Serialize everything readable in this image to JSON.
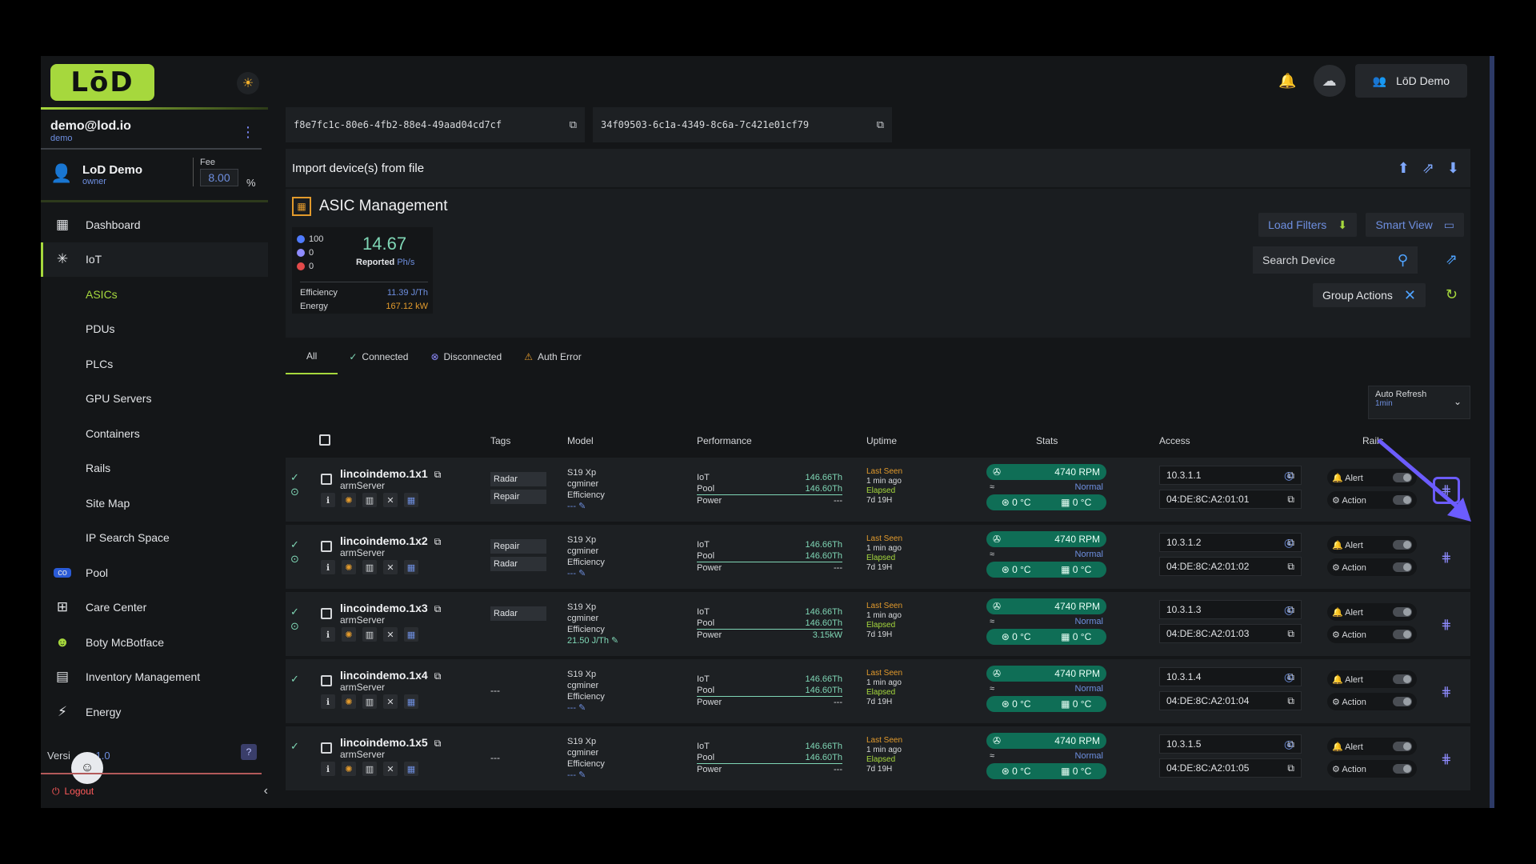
{
  "header": {
    "logo": "LōD",
    "user_button": "LōD Demo"
  },
  "sidebar": {
    "email": "demo@lod.io",
    "account_sub": "demo",
    "owner_name": "LoD Demo",
    "owner_role": "owner",
    "fee_label": "Fee",
    "fee_value": "8.00",
    "fee_unit": "%",
    "items": [
      {
        "label": "Dashboard",
        "icon": "dashboard-icon"
      },
      {
        "label": "IoT",
        "icon": "iot-icon"
      }
    ],
    "sub_items": [
      "ASICs",
      "PDUs",
      "PLCs",
      "GPU Servers",
      "Containers",
      "Rails",
      "Site Map",
      "IP Search Space"
    ],
    "items_bottom": [
      {
        "label": "Pool",
        "icon": "pool-icon"
      },
      {
        "label": "Care Center",
        "icon": "care-icon"
      },
      {
        "label": "Boty McBotface",
        "icon": "bot-icon"
      },
      {
        "label": "Inventory Management",
        "icon": "inventory-icon"
      },
      {
        "label": "Energy",
        "icon": "bolt-icon"
      }
    ],
    "version_label": "Versi",
    "version_value": ".1.0",
    "logout": "Logout"
  },
  "uuids": [
    "f8e7fc1c-80e6-4fb2-88e4-49aad04cd7cf",
    "34f09503-6c1a-4349-8c6a-7c421e01cf79"
  ],
  "import_label": "Import device(s) from file",
  "asic": {
    "title": "ASIC Management",
    "count_connected": "100",
    "count_disconnected": "0",
    "count_error": "0",
    "reported_value": "14.67",
    "reported_label": "Reported",
    "reported_unit": "Ph/s",
    "efficiency_label": "Efficiency",
    "efficiency_value": "11.39 J/Th",
    "energy_label": "Energy",
    "energy_value": "167.12 kW",
    "load_filters": "Load Filters",
    "smart_view": "Smart View",
    "search_placeholder": "Search Device",
    "group_actions": "Group Actions"
  },
  "tabs": [
    "All",
    "Connected",
    "Disconnected",
    "Auth Error"
  ],
  "auto_refresh": {
    "label": "Auto Refresh",
    "value": "1min"
  },
  "columns": [
    "Tags",
    "Model",
    "Performance",
    "Uptime",
    "Stats",
    "Access",
    "Rails"
  ],
  "rows": [
    {
      "name": "lincoindemo.1x1",
      "server": "armServer",
      "tags": [
        "Radar",
        "Repair"
      ],
      "model": "S19 Xp",
      "miner": "cgminer",
      "eff_label": "Efficiency",
      "eff": "---",
      "iot": "146.66Th",
      "pool": "146.60Th",
      "power": "---",
      "last_seen": "Last Seen",
      "ago": "1 min ago",
      "elapsed": "Elapsed",
      "uptime": "7d 19H",
      "rpm": "4740 RPM",
      "status": "Normal",
      "t1": "0 °C",
      "t2": "0 °C",
      "ip": "10.3.1.1",
      "mac": "04:DE:8C:A2:01:01",
      "alert": "Alert",
      "action": "Action"
    },
    {
      "name": "lincoindemo.1x2",
      "server": "armServer",
      "tags": [
        "Repair",
        "Radar"
      ],
      "model": "S19 Xp",
      "miner": "cgminer",
      "eff_label": "Efficiency",
      "eff": "---",
      "iot": "146.66Th",
      "pool": "146.60Th",
      "power": "---",
      "last_seen": "Last Seen",
      "ago": "1 min ago",
      "elapsed": "Elapsed",
      "uptime": "7d 19H",
      "rpm": "4740 RPM",
      "status": "Normal",
      "t1": "0 °C",
      "t2": "0 °C",
      "ip": "10.3.1.2",
      "mac": "04:DE:8C:A2:01:02",
      "alert": "Alert",
      "action": "Action"
    },
    {
      "name": "lincoindemo.1x3",
      "server": "armServer",
      "tags": [
        "Radar"
      ],
      "model": "S19 Xp",
      "miner": "cgminer",
      "eff_label": "Efficiency",
      "eff": "21.50 J/Th",
      "iot": "146.66Th",
      "pool": "146.60Th",
      "power": "3.15kW",
      "last_seen": "Last Seen",
      "ago": "1 min ago",
      "elapsed": "Elapsed",
      "uptime": "7d 19H",
      "rpm": "4740 RPM",
      "status": "Normal",
      "t1": "0 °C",
      "t2": "0 °C",
      "ip": "10.3.1.3",
      "mac": "04:DE:8C:A2:01:03",
      "alert": "Alert",
      "action": "Action"
    },
    {
      "name": "lincoindemo.1x4",
      "server": "armServer",
      "tags": [],
      "notag": "---",
      "model": "S19 Xp",
      "miner": "cgminer",
      "eff_label": "Efficiency",
      "eff": "---",
      "iot": "146.66Th",
      "pool": "146.60Th",
      "power": "---",
      "last_seen": "Last Seen",
      "ago": "1 min ago",
      "elapsed": "Elapsed",
      "uptime": "7d 19H",
      "rpm": "4740 RPM",
      "status": "Normal",
      "t1": "0 °C",
      "t2": "0 °C",
      "ip": "10.3.1.4",
      "mac": "04:DE:8C:A2:01:04",
      "alert": "Alert",
      "action": "Action"
    },
    {
      "name": "lincoindemo.1x5",
      "server": "armServer",
      "tags": [],
      "notag": "---",
      "model": "S19 Xp",
      "miner": "cgminer",
      "eff_label": "Efficiency",
      "eff": "---",
      "iot": "146.66Th",
      "pool": "146.60Th",
      "power": "---",
      "last_seen": "Last Seen",
      "ago": "1 min ago",
      "elapsed": "Elapsed",
      "uptime": "7d 19H",
      "rpm": "4740 RPM",
      "status": "Normal",
      "t1": "0 °C",
      "t2": "0 °C",
      "ip": "10.3.1.5",
      "mac": "04:DE:8C:A2:01:05",
      "alert": "Alert",
      "action": "Action"
    }
  ],
  "perf_labels": {
    "iot": "IoT",
    "pool": "Pool",
    "power": "Power"
  },
  "colors": {
    "accent": "#a6d83d",
    "link": "#6e8fe0",
    "highlight": "#6c5cff"
  }
}
